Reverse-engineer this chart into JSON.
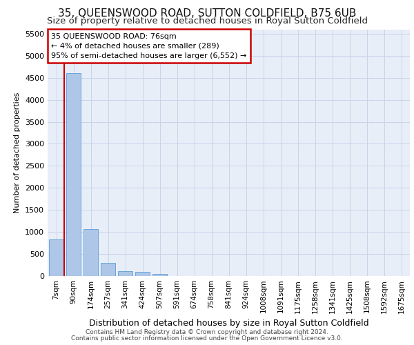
{
  "title1": "35, QUEENSWOOD ROAD, SUTTON COLDFIELD, B75 6UB",
  "title2": "Size of property relative to detached houses in Royal Sutton Coldfield",
  "xlabel": "Distribution of detached houses by size in Royal Sutton Coldfield",
  "ylabel": "Number of detached properties",
  "footnote1": "Contains HM Land Registry data © Crown copyright and database right 2024.",
  "footnote2": "Contains public sector information licensed under the Open Government Licence v3.0.",
  "annotation_title": "35 QUEENSWOOD ROAD: 76sqm",
  "annotation_line2": "← 4% of detached houses are smaller (289)",
  "annotation_line3": "95% of semi-detached houses are larger (6,552) →",
  "bar_color": "#aec6e8",
  "bar_edge_color": "#5a9fd4",
  "vline_color": "#cc0000",
  "annotation_box_edgecolor": "#cc0000",
  "categories": [
    "7sqm",
    "90sqm",
    "174sqm",
    "257sqm",
    "341sqm",
    "424sqm",
    "507sqm",
    "591sqm",
    "674sqm",
    "758sqm",
    "841sqm",
    "924sqm",
    "1008sqm",
    "1091sqm",
    "1175sqm",
    "1258sqm",
    "1341sqm",
    "1425sqm",
    "1508sqm",
    "1592sqm",
    "1675sqm"
  ],
  "values": [
    830,
    4600,
    1060,
    290,
    105,
    100,
    50,
    5,
    0,
    0,
    0,
    0,
    0,
    0,
    0,
    0,
    0,
    0,
    0,
    0,
    0
  ],
  "vline_x": 0.47,
  "ylim": [
    0,
    5600
  ],
  "yticks": [
    0,
    500,
    1000,
    1500,
    2000,
    2500,
    3000,
    3500,
    4000,
    4500,
    5000,
    5500
  ],
  "grid_color": "#c8d4e8",
  "bg_color": "#e8eef8",
  "title1_fontsize": 11,
  "title2_fontsize": 9.5,
  "ylabel_fontsize": 8,
  "xlabel_fontsize": 9,
  "tick_fontsize": 8,
  "xtick_fontsize": 7.5,
  "footnote_fontsize": 6.5,
  "annotation_fontsize": 8
}
